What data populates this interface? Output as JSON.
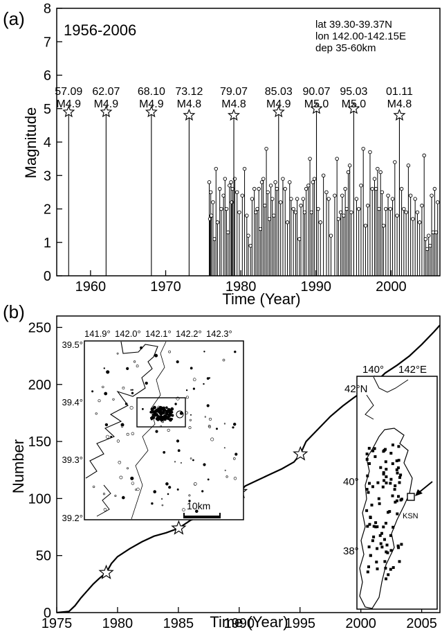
{
  "chart_data": [
    {
      "type": "stem",
      "panel_label": "(a)",
      "period": "1956-2006",
      "region": [
        "lat 39.30-39.37N",
        "lon 142.00-142.15E",
        "dep 35-60km"
      ],
      "xlabel": "Time (Year)",
      "ylabel": "Magnitude",
      "xlim": [
        1955.5,
        2006.5
      ],
      "ylim": [
        0,
        8
      ],
      "xticks": [
        1960,
        1970,
        1980,
        1990,
        2000
      ],
      "yticks": [
        0,
        1,
        2,
        3,
        4,
        5,
        6,
        7,
        8
      ],
      "main_events": [
        {
          "x": 1957.09,
          "mag": 4.9,
          "date": "57.09",
          "mlabel": "M4.9"
        },
        {
          "x": 1962.07,
          "mag": 4.9,
          "date": "62.07",
          "mlabel": "M4.9"
        },
        {
          "x": 1968.1,
          "mag": 4.9,
          "date": "68.10",
          "mlabel": "M4.9"
        },
        {
          "x": 1973.12,
          "mag": 4.8,
          "date": "73.12",
          "mlabel": "M4.8"
        },
        {
          "x": 1979.07,
          "mag": 4.8,
          "date": "79.07",
          "mlabel": "M4.8"
        },
        {
          "x": 1985.03,
          "mag": 4.9,
          "date": "85.03",
          "mlabel": "M4.9"
        },
        {
          "x": 1990.07,
          "mag": 5.0,
          "date": "90.07",
          "mlabel": "M5.0"
        },
        {
          "x": 1995.03,
          "mag": 5.0,
          "date": "95.03",
          "mlabel": "M5.0"
        },
        {
          "x": 2001.11,
          "mag": 4.8,
          "date": "01.11",
          "mlabel": "M4.8"
        }
      ],
      "small_events": [
        [
          1975.8,
          2.8
        ],
        [
          1975.9,
          1.7
        ],
        [
          1976.0,
          2.5
        ],
        [
          1976.1,
          1.8
        ],
        [
          1976.3,
          2.2
        ],
        [
          1976.5,
          1.1
        ],
        [
          1976.7,
          3.2
        ],
        [
          1976.9,
          1.6
        ],
        [
          1977.2,
          2.6
        ],
        [
          1977.4,
          2.0
        ],
        [
          1977.7,
          2.4
        ],
        [
          1977.9,
          2.9
        ],
        [
          1978.1,
          2.0
        ],
        [
          1978.3,
          1.3
        ],
        [
          1978.5,
          2.7
        ],
        [
          1978.7,
          2.8
        ],
        [
          1978.8,
          2.2
        ],
        [
          1978.9,
          2.6
        ],
        [
          1979.2,
          2.9
        ],
        [
          1979.5,
          2.5
        ],
        [
          1979.8,
          1.9
        ],
        [
          1980.2,
          2.4
        ],
        [
          1980.5,
          3.2
        ],
        [
          1980.8,
          1.8
        ],
        [
          1981.0,
          1.2
        ],
        [
          1981.3,
          0.9
        ],
        [
          1981.5,
          2.3
        ],
        [
          1981.8,
          2.6
        ],
        [
          1982.0,
          1.9
        ],
        [
          1982.2,
          2.0
        ],
        [
          1982.4,
          2.6
        ],
        [
          1982.6,
          1.4
        ],
        [
          1982.8,
          2.8
        ],
        [
          1983.0,
          2.9
        ],
        [
          1983.2,
          2.1
        ],
        [
          1983.4,
          3.8
        ],
        [
          1983.6,
          2.5
        ],
        [
          1983.8,
          1.7
        ],
        [
          1984.0,
          2.7
        ],
        [
          1984.2,
          2.3
        ],
        [
          1984.4,
          1.8
        ],
        [
          1984.6,
          2.8
        ],
        [
          1984.8,
          2.6
        ],
        [
          1985.3,
          2.2
        ],
        [
          1985.6,
          2.9
        ],
        [
          1985.9,
          2.6
        ],
        [
          1986.2,
          1.6
        ],
        [
          1986.5,
          2.8
        ],
        [
          1986.7,
          2.3
        ],
        [
          1987.0,
          2.0
        ],
        [
          1987.3,
          1.9
        ],
        [
          1987.5,
          2.3
        ],
        [
          1987.8,
          1.1
        ],
        [
          1988.0,
          2.1
        ],
        [
          1988.3,
          2.3
        ],
        [
          1988.5,
          1.9
        ],
        [
          1988.7,
          2.6
        ],
        [
          1989.0,
          2.7
        ],
        [
          1989.2,
          3.5
        ],
        [
          1989.4,
          1.9
        ],
        [
          1989.6,
          2.8
        ],
        [
          1989.8,
          2.9
        ],
        [
          1990.3,
          2.0
        ],
        [
          1990.6,
          1.6
        ],
        [
          1991.0,
          3.0
        ],
        [
          1991.4,
          2.5
        ],
        [
          1991.7,
          2.3
        ],
        [
          1992.0,
          1.2
        ],
        [
          1992.5,
          2.4
        ],
        [
          1992.8,
          3.5
        ],
        [
          1993.0,
          1.7
        ],
        [
          1993.3,
          1.9
        ],
        [
          1993.5,
          2.4
        ],
        [
          1993.7,
          1.8
        ],
        [
          1993.9,
          2.6
        ],
        [
          1994.1,
          2.0
        ],
        [
          1994.3,
          3.1
        ],
        [
          1994.5,
          3.3
        ],
        [
          1994.7,
          1.9
        ],
        [
          1995.4,
          2.3
        ],
        [
          1995.7,
          2.0
        ],
        [
          1996.0,
          2.7
        ],
        [
          1996.3,
          3.8
        ],
        [
          1996.6,
          1.5
        ],
        [
          1996.9,
          2.1
        ],
        [
          1997.2,
          3.7
        ],
        [
          1997.5,
          2.6
        ],
        [
          1997.8,
          2.9
        ],
        [
          1998.0,
          2.6
        ],
        [
          1998.2,
          3.2
        ],
        [
          1998.4,
          2.0
        ],
        [
          1998.6,
          3.1
        ],
        [
          1998.8,
          2.5
        ],
        [
          1999.0,
          1.5
        ],
        [
          1999.3,
          2.0
        ],
        [
          1999.6,
          2.4
        ],
        [
          1999.9,
          2.0
        ],
        [
          2000.2,
          2.3
        ],
        [
          2000.5,
          3.4
        ],
        [
          2000.8,
          1.8
        ],
        [
          2001.4,
          2.6
        ],
        [
          2001.7,
          2.0
        ],
        [
          2002.0,
          1.9
        ],
        [
          2002.3,
          3.3
        ],
        [
          2002.6,
          2.4
        ],
        [
          2002.9,
          1.7
        ],
        [
          2003.2,
          2.3
        ],
        [
          2003.5,
          1.9
        ],
        [
          2003.8,
          1.6
        ],
        [
          2004.1,
          2.1
        ],
        [
          2004.4,
          3.6
        ],
        [
          2004.6,
          1.1
        ],
        [
          2004.8,
          0.8
        ],
        [
          2005.0,
          1.2
        ],
        [
          2005.2,
          0.9
        ],
        [
          2005.4,
          2.4
        ],
        [
          2005.6,
          1.3
        ],
        [
          2005.8,
          2.6
        ],
        [
          2006.0,
          1.3
        ],
        [
          2006.2,
          2.2
        ]
      ]
    },
    {
      "type": "line",
      "panel_label": "(b)",
      "xlabel": "Time (Year)",
      "ylabel": "Number",
      "xlim": [
        1975,
        2006.5
      ],
      "ylim": [
        0,
        260
      ],
      "xticks": [
        1975,
        1980,
        1985,
        1990,
        1995,
        2000,
        2005
      ],
      "yticks": [
        0,
        50,
        100,
        150,
        200,
        250
      ],
      "x": [
        1975.0,
        1976.0,
        1976.5,
        1977.0,
        1977.5,
        1978.0,
        1978.5,
        1979.07,
        1979.5,
        1980.0,
        1981.0,
        1982.0,
        1983.0,
        1984.0,
        1985.03,
        1986.0,
        1987.0,
        1988.0,
        1989.0,
        1990.07,
        1990.5,
        1991.5,
        1992.5,
        1993.5,
        1994.5,
        1995.03,
        1995.5,
        1996.5,
        1997.5,
        1998.5,
        1999.5,
        2000.5,
        2001.11,
        2002.0,
        2003.0,
        2004.0,
        2005.0,
        2006.0,
        2006.5
      ],
      "y": [
        0,
        1,
        6,
        13,
        19,
        25,
        30,
        35,
        43,
        49,
        56,
        62,
        67,
        70,
        74,
        81,
        85,
        91,
        97,
        106,
        111,
        116,
        121,
        126,
        132,
        139,
        150,
        161,
        172,
        181,
        189,
        196,
        201,
        210,
        217,
        225,
        235,
        246,
        252
      ],
      "markers": [
        {
          "x": 1979.07,
          "y": 35
        },
        {
          "x": 1985.03,
          "y": 74
        },
        {
          "x": 1990.07,
          "y": 106
        },
        {
          "x": 1995.03,
          "y": 139
        },
        {
          "x": 2001.11,
          "y": 201
        }
      ]
    }
  ],
  "inset_local": {
    "lon_ticks": [
      "141.9°",
      "142.0°",
      "142.1°",
      "142.2°",
      "142.3°"
    ],
    "lat_ticks": [
      "39.5°",
      "39.4°",
      "39.3°",
      "39.2°"
    ],
    "scale_label": "10km"
  },
  "inset_regional": {
    "lon_ticks": [
      "140°",
      "142°E"
    ],
    "lat_ticks": [
      "42°N",
      "40°",
      "38°"
    ],
    "station_label": "KSN"
  }
}
